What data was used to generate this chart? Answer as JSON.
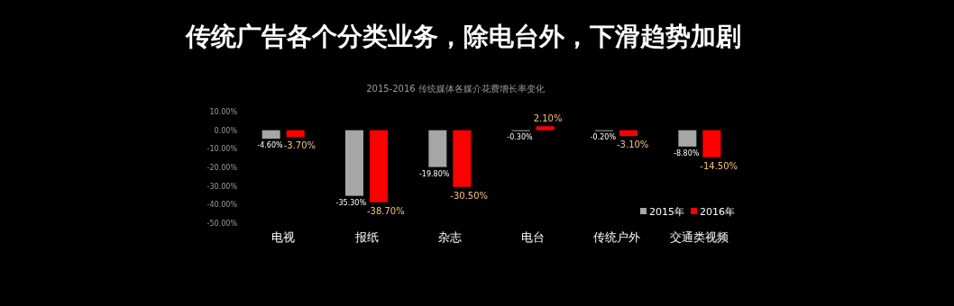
{
  "chart_data": {
    "type": "bar",
    "title": "传统广告各个分类业务，除电台外，下滑趋势加剧",
    "subtitle": "2015-2016 传统媒体各媒介花费增长率变化",
    "categories": [
      "电视",
      "报纸",
      "杂志",
      "电台",
      "传统户外",
      "交通类视频"
    ],
    "series": [
      {
        "name": "2015年",
        "color": "#a6a6a6",
        "values": [
          -4.6,
          -35.3,
          -19.8,
          -0.3,
          -0.2,
          -8.8
        ],
        "value_labels": [
          "-4.60%",
          "-35.30%",
          "-19.80%",
          "-0.30%",
          "-0.20%",
          "-8.80%"
        ]
      },
      {
        "name": "2016年",
        "color": "#ff0000",
        "values": [
          -3.7,
          -38.7,
          -30.5,
          2.1,
          -3.1,
          -14.5
        ],
        "value_labels": [
          "-3.70%",
          "-38.70%",
          "-30.50%",
          "2.10%",
          "-3.10%",
          "-14.50%"
        ]
      }
    ],
    "ylim": [
      -50,
      10
    ],
    "yticks": [
      {
        "value": 10,
        "label": "10.00%"
      },
      {
        "value": 0,
        "label": "0.00%"
      },
      {
        "value": -10,
        "label": "-10.00%"
      },
      {
        "value": -20,
        "label": "-20.00%"
      },
      {
        "value": -30,
        "label": "-30.00%"
      },
      {
        "value": -40,
        "label": "-40.00%"
      },
      {
        "value": -50,
        "label": "-50.00%"
      }
    ],
    "legend": "bottom right"
  }
}
